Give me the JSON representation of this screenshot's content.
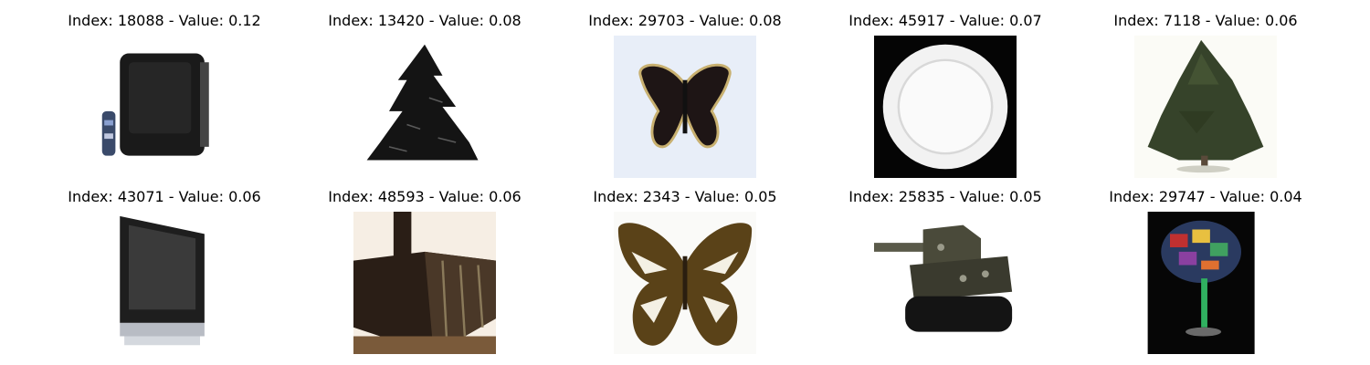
{
  "grid": {
    "cells": [
      {
        "title": "Index: 18088 - Value: 0.12",
        "subject": "crt-television"
      },
      {
        "title": "Index: 13420 - Value: 0.08",
        "subject": "silhouette-pine-tree"
      },
      {
        "title": "Index: 29703 - Value: 0.08",
        "subject": "dark-butterfly"
      },
      {
        "title": "Index: 45917 - Value: 0.07",
        "subject": "white-plate"
      },
      {
        "title": "Index: 7118 - Value: 0.06",
        "subject": "green-pine-tree"
      },
      {
        "title": "Index: 43071 - Value: 0.06",
        "subject": "flat-screen-tv"
      },
      {
        "title": "Index: 48593 - Value: 0.06",
        "subject": "wooden-box"
      },
      {
        "title": "Index: 2343 - Value: 0.05",
        "subject": "brown-butterfly"
      },
      {
        "title": "Index: 25835 - Value: 0.05",
        "subject": "toy-tank"
      },
      {
        "title": "Index: 29747 - Value: 0.04",
        "subject": "mosaic-glass"
      }
    ]
  }
}
